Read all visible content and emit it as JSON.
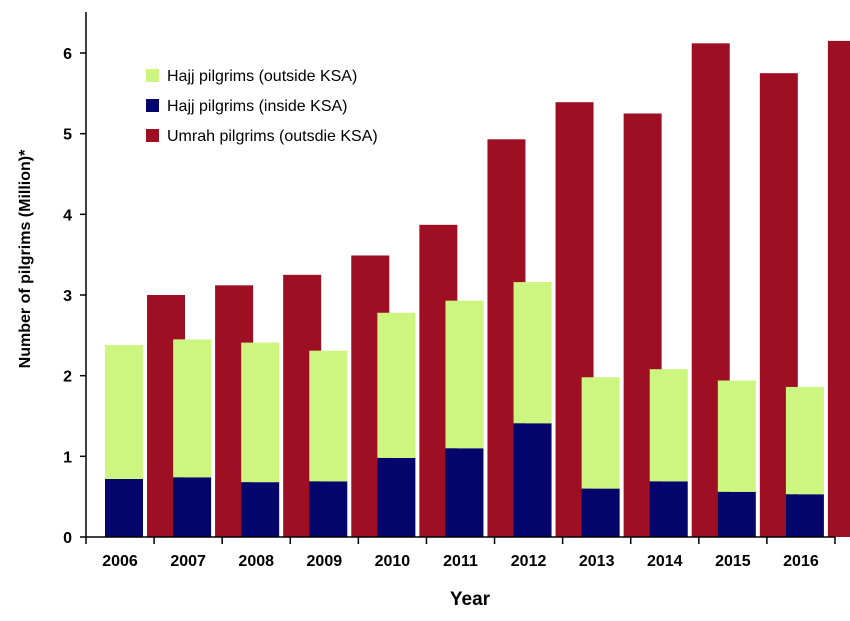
{
  "chart_data": {
    "type": "bar",
    "title": "",
    "xlabel": "Year",
    "ylabel": "Number of pilgrims (Million)*",
    "ylim": [
      0,
      6
    ],
    "yticks": [
      0,
      1,
      2,
      3,
      4,
      5,
      6
    ],
    "grid": false,
    "legend_position": "top-left",
    "categories": [
      "2006",
      "2007",
      "2008",
      "2009",
      "2010",
      "2011",
      "2012",
      "2013",
      "2014",
      "2015",
      "2016"
    ],
    "series": [
      {
        "name": "Hajj pilgrims (outside KSA)",
        "color": "#ccf67f",
        "stack": "hajj",
        "values": [
          1.66,
          1.71,
          1.73,
          1.62,
          1.8,
          1.83,
          1.75,
          1.38,
          1.39,
          1.38,
          1.33
        ]
      },
      {
        "name": "Hajj pilgrims (inside KSA)",
        "color": "#05066b",
        "stack": "hajj",
        "values": [
          0.72,
          0.74,
          0.68,
          0.69,
          0.98,
          1.1,
          1.41,
          0.6,
          0.69,
          0.56,
          0.53
        ]
      },
      {
        "name": "Umrah pilgrims (outsdie KSA)",
        "color": "#9e0f24",
        "stack": "umrah",
        "values": [
          3.0,
          3.12,
          3.25,
          3.49,
          3.87,
          4.93,
          5.39,
          5.25,
          6.12,
          5.75,
          6.15
        ]
      }
    ]
  }
}
